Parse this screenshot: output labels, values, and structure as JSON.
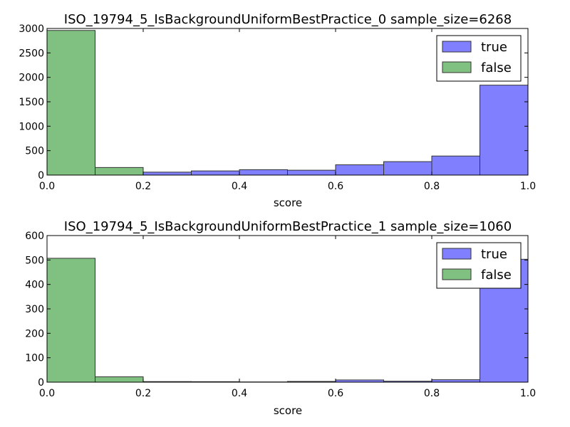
{
  "colors": {
    "true_fill": "#8080ff",
    "false_fill": "#80c080",
    "bar_edge": "#333333"
  },
  "chart_data": [
    {
      "type": "bar",
      "title": "ISO_19794_5_IsBackgroundUniformBestPractice_0 sample_size=6268",
      "xlabel": "score",
      "ylabel": "",
      "xlim": [
        0.0,
        1.0
      ],
      "ylim": [
        0,
        3000
      ],
      "xticks": [
        "0.0",
        "0.2",
        "0.4",
        "0.6",
        "0.8",
        "1.0"
      ],
      "yticks": [
        "0",
        "500",
        "1000",
        "1500",
        "2000",
        "2500",
        "3000"
      ],
      "bin_edges": [
        0.0,
        0.1,
        0.2,
        0.3,
        0.4,
        0.5,
        0.6,
        0.7,
        0.8,
        0.9,
        1.0
      ],
      "legend": "top-right",
      "grid": false,
      "series": [
        {
          "name": "true",
          "values": [
            0,
            0,
            60,
            85,
            110,
            100,
            210,
            275,
            390,
            1840
          ]
        },
        {
          "name": "false",
          "values": [
            2960,
            155,
            0,
            0,
            0,
            0,
            0,
            0,
            0,
            0
          ]
        }
      ]
    },
    {
      "type": "bar",
      "title": "ISO_19794_5_IsBackgroundUniformBestPractice_1 sample_size=1060",
      "xlabel": "score",
      "ylabel": "",
      "xlim": [
        0.0,
        1.0
      ],
      "ylim": [
        0,
        600
      ],
      "xticks": [
        "0.0",
        "0.2",
        "0.4",
        "0.6",
        "0.8",
        "1.0"
      ],
      "yticks": [
        "0",
        "100",
        "200",
        "300",
        "400",
        "500",
        "600"
      ],
      "bin_edges": [
        0.0,
        0.1,
        0.2,
        0.3,
        0.4,
        0.5,
        0.6,
        0.7,
        0.8,
        0.9,
        1.0
      ],
      "legend": "top-right",
      "grid": false,
      "series": [
        {
          "name": "true",
          "values": [
            0,
            0,
            2,
            2,
            1,
            3,
            9,
            4,
            10,
            503
          ]
        },
        {
          "name": "false",
          "values": [
            507,
            22,
            2,
            0,
            0,
            0,
            0,
            0,
            0,
            0
          ]
        }
      ]
    }
  ]
}
